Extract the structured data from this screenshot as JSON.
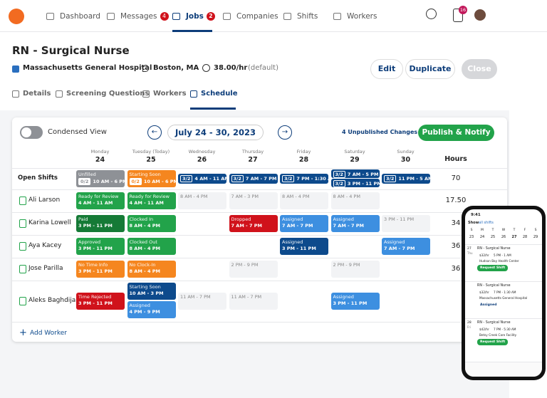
{
  "nav": {
    "items": [
      {
        "label": "Dashboard"
      },
      {
        "label": "Messages",
        "badge": "4"
      },
      {
        "label": "Jobs",
        "badge": "2"
      },
      {
        "label": "Companies"
      },
      {
        "label": "Shifts"
      },
      {
        "label": "Workers"
      }
    ],
    "notifications": "16"
  },
  "job": {
    "title": "RN - Surgical Nurse",
    "hospital": "Massachusetts General Hospital",
    "city": "Boston, MA",
    "rate": "38.00/hr",
    "rate_note": "(default)",
    "buttons": [
      "Edit",
      "Duplicate",
      "Close"
    ],
    "tabs": [
      "Details",
      "Screening Questions",
      "Workers",
      "Schedule"
    ]
  },
  "schedule": {
    "condensed": "Condensed View",
    "range": "July 24 - 30, 2023",
    "unpublished": "4 Unpublished Changes",
    "publish": "Publish & Notify",
    "hours_header": "Hours",
    "add_worker": "Add Worker",
    "days": [
      {
        "name": "Monday",
        "num": "24"
      },
      {
        "name": "Tuesday (Today)",
        "num": "25"
      },
      {
        "name": "Wednesday",
        "num": "26"
      },
      {
        "name": "Thursday",
        "num": "27"
      },
      {
        "name": "Friday",
        "num": "28"
      },
      {
        "name": "Saturday",
        "num": "29"
      },
      {
        "name": "Sunday",
        "num": "30"
      }
    ],
    "open": {
      "name": "Open Shifts",
      "hours": "70",
      "cells": [
        [
          {
            "status": "Unfilled",
            "count": "0/2",
            "time": "10 AM - 6 PM",
            "color": "#8e9196"
          }
        ],
        [
          {
            "status": "Starting Soon",
            "count": "0/2",
            "time": "10 AM - 6 PM",
            "color": "#f5861f"
          }
        ],
        [
          {
            "count": "3/2",
            "time": "4 AM - 11 AM",
            "color": "#0d4a8c"
          }
        ],
        [
          {
            "count": "3/2",
            "time": "7 AM - 7 PM",
            "color": "#0d4a8c"
          }
        ],
        [
          {
            "count": "3/2",
            "time": "7 PM - 1:30 AM",
            "color": "#0d4a8c"
          }
        ],
        [
          {
            "count": "3/2",
            "time": "7 AM - 5 PM",
            "color": "#0d4a8c"
          },
          {
            "count": "3/2",
            "time": "3 PM - 11 PM",
            "color": "#0d4a8c"
          }
        ],
        [
          {
            "count": "3/2",
            "time": "11 PM - 5 AM",
            "color": "#0d4a8c"
          }
        ]
      ]
    },
    "workers": [
      {
        "name": "Ali Larson",
        "hours": "17.50",
        "cells": [
          [
            {
              "status": "Ready for Review",
              "time": "4 AM - 11 AM",
              "color": "#22a34a"
            }
          ],
          [
            {
              "status": "Ready for Review",
              "time": "4 AM - 11 AM",
              "color": "#22a34a"
            }
          ],
          [
            {
              "time": "8 AM - 4 PM"
            }
          ],
          [
            {
              "time": "7 AM - 3 PM"
            }
          ],
          [
            {
              "time": "8 AM - 4 PM"
            }
          ],
          [
            {
              "time": "8 AM - 4 PM"
            }
          ],
          null
        ]
      },
      {
        "name": "Karina Lowell",
        "hours": "34",
        "cells": [
          [
            {
              "status": "Paid",
              "time": "3 PM - 11 PM",
              "color": "#157a36"
            }
          ],
          [
            {
              "status": "Clocked In",
              "time": "8 AM - 4 PM",
              "color": "#22a34a"
            }
          ],
          null,
          [
            {
              "status": "Dropped",
              "time": "7 AM - 7 PM",
              "color": "#d0121b"
            }
          ],
          [
            {
              "status": "Assigned",
              "time": "7 AM - 7 PM",
              "color": "#3d8fe0"
            }
          ],
          [
            {
              "status": "Assigned",
              "time": "7 AM - 7 PM",
              "color": "#3d8fe0"
            }
          ],
          [
            {
              "time": "3 PM - 11 PM"
            }
          ]
        ]
      },
      {
        "name": "Aya Kacey",
        "hours": "36",
        "cells": [
          [
            {
              "status": "Approved",
              "time": "3 PM - 11 PM",
              "color": "#22a34a"
            }
          ],
          [
            {
              "status": "Clocked Out",
              "time": "8 AM - 4 PM",
              "color": "#22a34a"
            }
          ],
          null,
          null,
          [
            {
              "status": "Assigned",
              "time": "3 PM - 11 PM",
              "color": "#0d4a8c"
            }
          ],
          null,
          [
            {
              "status": "Assigned",
              "time": "7 AM - 7 PM",
              "color": "#3d8fe0"
            }
          ]
        ]
      },
      {
        "name": "Jose Parilla",
        "hours": "36",
        "cells": [
          [
            {
              "status": "No Time Info",
              "time": "3 PM - 11 PM",
              "color": "#f5861f"
            }
          ],
          [
            {
              "status": "No Clock-In",
              "time": "8 AM - 4 PM",
              "color": "#f5861f"
            }
          ],
          null,
          [
            {
              "time": "2 PM - 9 PM"
            }
          ],
          null,
          [
            {
              "time": "2 PM - 9 PM"
            }
          ],
          null
        ]
      },
      {
        "name": "Aleks Baghdijan",
        "cells": [
          [
            {
              "status": "Time Rejected",
              "time": "3 PM - 11 PM",
              "color": "#d0121b"
            }
          ],
          [
            {
              "status": "Starting Soon",
              "time": "10 AM - 3 PM",
              "color": "#0d4a8c"
            },
            {
              "status": "Assigned",
              "time": "4 PM - 9 PM",
              "color": "#3d8fe0"
            }
          ],
          [
            {
              "time": "11 AM - 7 PM"
            }
          ],
          [
            {
              "time": "11 AM - 7 PM"
            }
          ],
          null,
          [
            {
              "status": "Assigned",
              "time": "3 PM - 11 PM",
              "color": "#3d8fe0"
            }
          ],
          null
        ]
      }
    ]
  },
  "phone": {
    "time": "9:41",
    "show": "Show",
    "filter": "all shifts",
    "weekdays": [
      "S",
      "M",
      "T",
      "W",
      "T",
      "F",
      "S"
    ],
    "dates": [
      "23",
      "24",
      "25",
      "26",
      "27",
      "28",
      "29"
    ],
    "cards": [
      {
        "day": "27",
        "dow": "Thu",
        "title": "RN - Surgical Nurse",
        "rate": "$32/hr",
        "time": "5 PM - 1 AM",
        "place": "Hudson Bay Health Center",
        "action": "Request Shift"
      },
      {
        "title": "RN - Surgical Nurse",
        "rate": "$32/hr",
        "time": "7 PM - 1:30 AM",
        "place": "Massachusetts General Hospital",
        "action": "Assigned"
      },
      {
        "day": "28",
        "dow": "Fri",
        "title": "RN - Surgical Nurse",
        "rate": "$42/hr",
        "time": "7 PM - 5:30 AM",
        "place": "Betsy Creek Care Facility",
        "action": "Request Shift"
      }
    ]
  }
}
